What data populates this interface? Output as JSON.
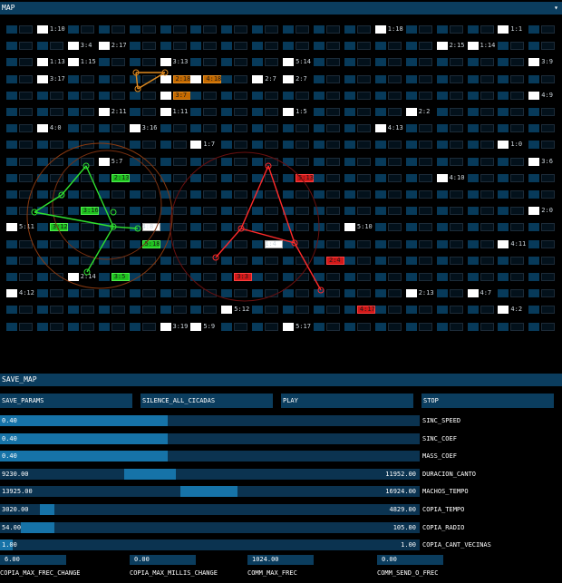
{
  "header": {
    "title": "MAP"
  },
  "grid": {
    "cols": 18,
    "rows": 19,
    "labels": {
      "0-1": "1:10",
      "0-12": "1:18",
      "0-16": "1:1",
      "1-2": "3:4",
      "1-3": "2:17",
      "1-14": "2:15",
      "1-15": "1:14",
      "2-1": "1:13",
      "2-2": "1:15",
      "2-5": "3:13",
      "2-9": "5:14",
      "2-17": "3:9",
      "3-1": "3:17",
      "3-8": "2:7",
      "3-9": "2:7",
      "4-17": "4:9",
      "5-3": "2:11",
      "5-5": "1:11",
      "5-9": "1:5",
      "5-13": "2:2",
      "6-1": "4:0",
      "6-4": "3:16",
      "6-12": "4:13",
      "7-6": "1:7",
      "7-16": "1:0",
      "8-3": "5:7",
      "8-17": "3:6",
      "9-14": "4:10",
      "11-17": "2:0",
      "12-0": "5:11",
      "12-11": "5:10",
      "13-16": "4:11",
      "15-2": "2:14",
      "16-0": "4:12",
      "16-13": "2:13",
      "16-15": "4:7",
      "17-7": "5:12",
      "17-16": "4:2",
      "18-5": "3:19",
      "18-6": "5:9",
      "18-9": "5:17"
    },
    "colored": {
      "3-5": {
        "kind": "orange",
        "label": "2:18"
      },
      "3-6": {
        "kind": "orange",
        "label": "4:18"
      },
      "4-5": {
        "kind": "orange",
        "label": "3:7"
      },
      "9-3": {
        "kind": "green",
        "label": "2:13"
      },
      "11-2": {
        "kind": "green",
        "label": "3:16"
      },
      "12-1": {
        "kind": "green",
        "label": "3:12"
      },
      "12-4": {
        "kind": "white-outline",
        "label": "4:8"
      },
      "13-4": {
        "kind": "green",
        "label": "5:18"
      },
      "15-3": {
        "kind": "green",
        "label": "3:5"
      },
      "9-9": {
        "kind": "red",
        "label": "5:13"
      },
      "13-8": {
        "kind": "white-outline",
        "label": "1:4"
      },
      "14-10": {
        "kind": "red",
        "label": "2:4"
      },
      "15-7": {
        "kind": "red",
        "label": "3:3"
      },
      "17-11": {
        "kind": "red",
        "label": "4:17"
      }
    }
  },
  "save_map": {
    "label": "SAVE_MAP"
  },
  "buttons": [
    {
      "label": "SAVE_PARAMS"
    },
    {
      "label": "SILENCE_ALL_CICADAS"
    },
    {
      "label": "PLAY"
    },
    {
      "label": "STOP"
    }
  ],
  "sliders": [
    {
      "label": "SINC_SPEED",
      "low": "0.40",
      "high": "",
      "from": 0,
      "to": 0.4
    },
    {
      "label": "SINC_COEF",
      "low": "0.40",
      "high": "",
      "from": 0,
      "to": 0.4
    },
    {
      "label": "MASS_COEF",
      "low": "0.40",
      "high": "",
      "from": 0,
      "to": 0.4
    },
    {
      "label": "DURACION_CANTO",
      "low": "9230.00",
      "high": "11952.00",
      "from": 0.296,
      "to": 0.42
    },
    {
      "label": "MACHOS_TEMPO",
      "low": "13925.00",
      "high": "16924.00",
      "from": 0.43,
      "to": 0.565
    },
    {
      "label": "COPIA_TEMPO",
      "low": "3020.00",
      "high": "4829.00",
      "from": 0.095,
      "to": 0.13
    },
    {
      "label": "COPIA_RADIO",
      "low": "54.00",
      "high": "105.00",
      "from": 0.05,
      "to": 0.13
    },
    {
      "label": "COPIA_CANT_VECINAS",
      "low": "1.00",
      "high": "1.00",
      "from": 0,
      "to": 0.03
    }
  ],
  "number_fields": [
    {
      "value": "6.00",
      "label": "COPIA_MAX_FREC_CHANGE"
    },
    {
      "value": "0.00",
      "label": "COPIA_MAX_MILLIS_CHANGE"
    },
    {
      "value": "1024.00",
      "label": "COMM_MAX_FREC"
    },
    {
      "value": "0.00",
      "label": "COMM_SEND_O_FREC"
    }
  ],
  "colors": {
    "panel": "#0b3d5e",
    "slider_fill": "#1673a8",
    "orange": "#c56a00",
    "green": "#1fc21f",
    "red": "#d01818"
  }
}
